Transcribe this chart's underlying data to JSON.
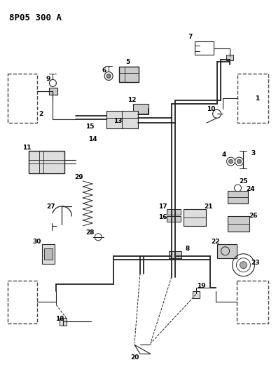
{
  "title": "8P05 300 A",
  "bg_color": "#ffffff",
  "line_color": "#222222",
  "figsize": [
    3.94,
    5.33
  ],
  "dpi": 100
}
